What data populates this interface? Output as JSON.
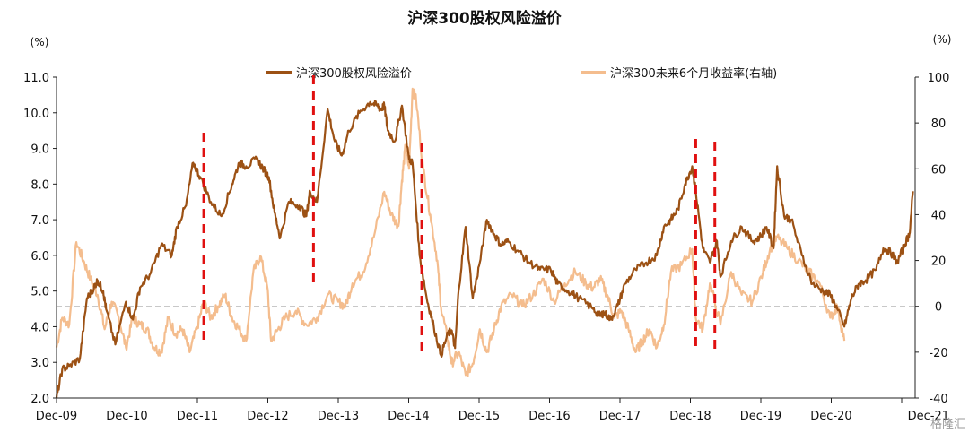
{
  "chart_data": {
    "type": "line",
    "title": "沪深300股权风险溢价",
    "left_unit": "(%)",
    "right_unit": "(%)",
    "x_ticks": [
      "Dec-09",
      "Dec-10",
      "Dec-11",
      "Dec-12",
      "Dec-13",
      "Dec-14",
      "Dec-15",
      "Dec-16",
      "Dec-17",
      "Dec-18",
      "Dec-19",
      "Dec-20",
      "Dec-21"
    ],
    "y_left": {
      "min": 2.0,
      "max": 11.0,
      "ticks": [
        "2.0",
        "3.0",
        "4.0",
        "5.0",
        "6.0",
        "7.0",
        "8.0",
        "9.0",
        "10.0",
        "11.0"
      ]
    },
    "y_right": {
      "min": -40,
      "max": 100,
      "ticks": [
        "-40",
        "-20",
        "0",
        "20",
        "40",
        "60",
        "80",
        "100"
      ]
    },
    "zero_line_right": 0,
    "series": [
      {
        "name": "沪深300股权风险溢价",
        "axis": "left",
        "color": "#9c5114",
        "x": [
          2009.92,
          2010.0,
          2010.1,
          2010.25,
          2010.35,
          2010.45,
          2010.5,
          2010.58,
          2010.62,
          2010.75,
          2010.9,
          2011.0,
          2011.1,
          2011.25,
          2011.4,
          2011.55,
          2011.62,
          2011.75,
          2011.85,
          2011.95,
          2012.1,
          2012.25,
          2012.4,
          2012.5,
          2012.6,
          2012.75,
          2012.85,
          2012.92,
          2013.0,
          2013.08,
          2013.2,
          2013.35,
          2013.45,
          2013.5,
          2013.6,
          2013.75,
          2013.85,
          2013.95,
          2014.05,
          2014.2,
          2014.35,
          2014.45,
          2014.5,
          2014.55,
          2014.6,
          2014.7,
          2014.8,
          2014.9,
          2014.95,
          2015.05,
          2015.15,
          2015.25,
          2015.35,
          2015.45,
          2015.5,
          2015.55,
          2015.6,
          2015.7,
          2015.8,
          2015.9,
          2016.0,
          2016.1,
          2016.2,
          2016.3,
          2016.45,
          2016.6,
          2016.75,
          2016.9,
          2017.0,
          2017.15,
          2017.3,
          2017.5,
          2017.6,
          2017.65,
          2017.75,
          2017.85,
          2017.95,
          2018.1,
          2018.25,
          2018.4,
          2018.5,
          2018.6,
          2018.7,
          2018.8,
          2018.9,
          2018.95,
          2019.05,
          2019.15,
          2019.25,
          2019.3,
          2019.45,
          2019.6,
          2019.75,
          2019.85,
          2019.95,
          2020.05,
          2020.1,
          2020.2,
          2020.3,
          2020.45,
          2020.6,
          2020.75,
          2020.85,
          2020.95,
          2021.05,
          2021.15,
          2021.25,
          2021.35,
          2021.5,
          2021.6,
          2021.7,
          2021.8,
          2021.9,
          2021.97,
          2022.02
        ],
        "values": [
          2.0,
          2.8,
          2.9,
          3.1,
          4.8,
          5.1,
          5.3,
          5.0,
          4.5,
          3.5,
          4.7,
          4.2,
          5.1,
          5.5,
          6.3,
          6.0,
          6.8,
          7.4,
          8.6,
          8.2,
          7.5,
          7.1,
          8.0,
          8.6,
          8.5,
          8.7,
          8.4,
          8.2,
          7.2,
          6.5,
          7.5,
          7.4,
          7.1,
          7.8,
          7.5,
          10.1,
          9.2,
          8.8,
          9.5,
          10.0,
          10.3,
          10.2,
          10.1,
          10.2,
          9.5,
          9.2,
          10.2,
          8.7,
          8.6,
          6.0,
          4.8,
          4.0,
          3.2,
          3.8,
          3.9,
          3.4,
          5.0,
          6.8,
          4.8,
          5.8,
          7.0,
          6.6,
          6.3,
          6.4,
          6.1,
          5.8,
          5.6,
          5.6,
          5.2,
          5.0,
          4.8,
          4.5,
          4.3,
          4.4,
          4.2,
          4.6,
          5.2,
          5.6,
          5.8,
          6.0,
          6.8,
          7.0,
          7.3,
          8.0,
          8.5,
          7.8,
          6.2,
          5.8,
          6.4,
          5.4,
          6.4,
          6.8,
          6.4,
          6.5,
          6.8,
          6.2,
          8.5,
          7.1,
          7.0,
          6.0,
          5.2,
          5.0,
          4.9,
          4.5,
          4.0,
          4.8,
          5.2,
          5.3,
          5.6,
          6.2,
          6.1,
          5.8,
          6.3,
          6.6,
          7.8
        ]
      },
      {
        "name": "沪深300未来6个月收益率(右轴)",
        "axis": "right",
        "color": "#f4bd8e",
        "x": [
          2009.92,
          2010.0,
          2010.1,
          2010.2,
          2010.3,
          2010.4,
          2010.5,
          2010.6,
          2010.7,
          2010.8,
          2010.9,
          2011.0,
          2011.1,
          2011.2,
          2011.3,
          2011.4,
          2011.5,
          2011.6,
          2011.7,
          2011.8,
          2011.9,
          2012.0,
          2012.1,
          2012.2,
          2012.3,
          2012.4,
          2012.5,
          2012.6,
          2012.7,
          2012.8,
          2012.9,
          2012.95,
          2013.05,
          2013.15,
          2013.3,
          2013.45,
          2013.6,
          2013.75,
          2013.9,
          2014.0,
          2014.1,
          2014.25,
          2014.4,
          2014.55,
          2014.65,
          2014.75,
          2014.8,
          2014.85,
          2014.9,
          2014.95,
          2015.0,
          2015.1,
          2015.2,
          2015.3,
          2015.35,
          2015.45,
          2015.5,
          2015.6,
          2015.7,
          2015.8,
          2015.9,
          2016.0,
          2016.1,
          2016.2,
          2016.35,
          2016.5,
          2016.65,
          2016.8,
          2016.95,
          2017.1,
          2017.25,
          2017.4,
          2017.5,
          2017.6,
          2017.7,
          2017.8,
          2017.9,
          2018.0,
          2018.1,
          2018.2,
          2018.3,
          2018.4,
          2018.5,
          2018.6,
          2018.75,
          2018.9,
          2018.95,
          2019.05,
          2019.15,
          2019.3,
          2019.45,
          2019.6,
          2019.75,
          2019.9,
          2020.0,
          2020.1,
          2020.25,
          2020.4,
          2020.55,
          2020.7,
          2020.85,
          2020.95,
          2021.05
        ],
        "values": [
          -18,
          -5,
          -8,
          28,
          20,
          12,
          5,
          -10,
          2,
          -5,
          -18,
          -5,
          -8,
          -10,
          -18,
          -20,
          -5,
          -12,
          -10,
          -20,
          -10,
          2,
          -5,
          0,
          5,
          -5,
          -10,
          -15,
          15,
          22,
          8,
          -15,
          -10,
          -5,
          -2,
          -8,
          -5,
          5,
          2,
          0,
          10,
          15,
          30,
          50,
          40,
          35,
          55,
          70,
          60,
          95,
          90,
          60,
          40,
          20,
          0,
          -15,
          -25,
          -20,
          -30,
          -25,
          -10,
          -20,
          -10,
          0,
          5,
          0,
          5,
          12,
          2,
          10,
          15,
          10,
          8,
          12,
          5,
          -5,
          -2,
          -10,
          -20,
          -15,
          -10,
          -18,
          -8,
          15,
          18,
          25,
          -5,
          -10,
          10,
          -8,
          15,
          5,
          2,
          15,
          25,
          30,
          25,
          20,
          15,
          10,
          -5,
          0,
          -15
        ]
      }
    ],
    "markers": [
      2012.0,
      2013.55,
      2015.08,
      2018.95,
      2019.22
    ],
    "legend_placement": "top",
    "grid": false
  },
  "watermark": "格隆汇"
}
